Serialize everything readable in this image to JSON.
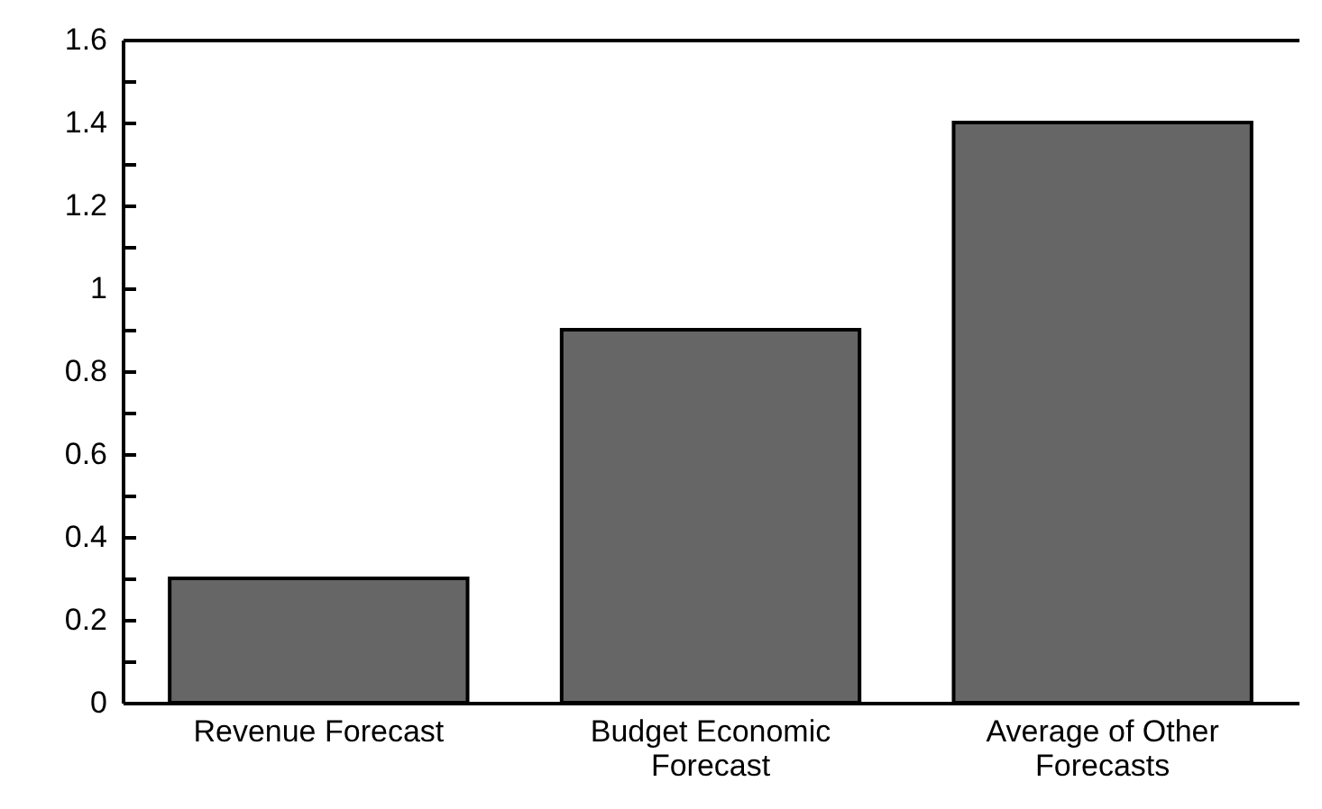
{
  "chart_data": {
    "type": "bar",
    "categories": [
      "Revenue Forecast",
      "Budget Economic Forecast",
      "Average of Other Forecasts"
    ],
    "values": [
      0.3,
      0.9,
      1.4
    ],
    "color": "#666666",
    "ylim": [
      0,
      1.6
    ],
    "yticks": [
      0,
      {
        "value": 0.1,
        "label": null
      },
      0.2,
      {
        "value": 0.3,
        "label": null
      },
      0.4,
      {
        "value": 0.5,
        "label": null
      },
      0.6,
      {
        "value": 0.7,
        "label": null
      },
      0.8,
      {
        "value": 0.9,
        "label": null
      },
      1,
      {
        "value": 1.1,
        "label": null
      },
      1.2,
      {
        "value": 1.3,
        "label": null
      },
      1.4,
      {
        "value": 1.5,
        "label": null
      },
      1.6
    ],
    "grid": false
  }
}
